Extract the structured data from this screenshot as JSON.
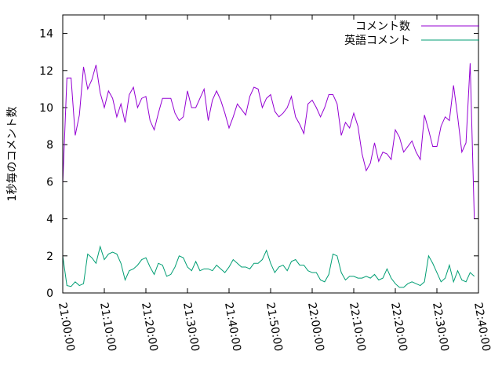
{
  "chart_data": {
    "type": "line",
    "title": "",
    "xlabel": "",
    "ylabel": "1秒毎のコメント数",
    "xlim": [
      "21:00:00",
      "22:40:00"
    ],
    "ylim": [
      0,
      15
    ],
    "x_ticks": [
      "21:00:00",
      "21:10:00",
      "21:20:00",
      "21:30:00",
      "21:40:00",
      "21:50:00",
      "22:00:00",
      "22:10:00",
      "22:20:00",
      "22:30:00",
      "22:40:00"
    ],
    "y_ticks": [
      "0",
      "2",
      "4",
      "6",
      "8",
      "10",
      "12",
      "14"
    ],
    "grid": false,
    "legend_position": "top-right",
    "x_interval": "00:01:00",
    "series": [
      {
        "name": "コメント数",
        "color": "#9400d3",
        "x": [
          "21:00:00",
          "21:01:00",
          "21:02:00",
          "21:03:00",
          "21:04:00",
          "21:05:00",
          "21:06:00",
          "21:07:00",
          "21:08:00",
          "21:09:00",
          "21:10:00",
          "21:11:00",
          "21:12:00",
          "21:13:00",
          "21:14:00",
          "21:15:00",
          "21:16:00",
          "21:17:00",
          "21:18:00",
          "21:19:00",
          "21:20:00",
          "21:21:00",
          "21:22:00",
          "21:23:00",
          "21:24:00",
          "21:25:00",
          "21:26:00",
          "21:27:00",
          "21:28:00",
          "21:29:00",
          "21:30:00",
          "21:31:00",
          "21:32:00",
          "21:33:00",
          "21:34:00",
          "21:35:00",
          "21:36:00",
          "21:37:00",
          "21:38:00",
          "21:39:00",
          "21:40:00",
          "21:41:00",
          "21:42:00",
          "21:43:00",
          "21:44:00",
          "21:45:00",
          "21:46:00",
          "21:47:00",
          "21:48:00",
          "21:49:00",
          "21:50:00",
          "21:51:00",
          "21:52:00",
          "21:53:00",
          "21:54:00",
          "21:55:00",
          "21:56:00",
          "21:57:00",
          "21:58:00",
          "21:59:00",
          "22:00:00",
          "22:01:00",
          "22:02:00",
          "22:03:00",
          "22:04:00",
          "22:05:00",
          "22:06:00",
          "22:07:00",
          "22:08:00",
          "22:09:00",
          "22:10:00",
          "22:11:00",
          "22:12:00",
          "22:13:00",
          "22:14:00",
          "22:15:00",
          "22:16:00",
          "22:17:00",
          "22:18:00",
          "22:19:00",
          "22:20:00",
          "22:21:00",
          "22:22:00",
          "22:23:00",
          "22:24:00",
          "22:25:00",
          "22:26:00",
          "22:27:00",
          "22:28:00",
          "22:29:00",
          "22:30:00",
          "22:31:00",
          "22:32:00",
          "22:33:00",
          "22:34:00",
          "22:35:00",
          "22:36:00",
          "22:37:00",
          "22:38:00",
          "22:39:00"
        ],
        "values": [
          5.9,
          11.6,
          11.6,
          8.5,
          9.6,
          12.2,
          11.0,
          11.5,
          12.3,
          10.8,
          10.0,
          10.9,
          10.5,
          9.5,
          10.2,
          9.2,
          10.7,
          11.1,
          10.0,
          10.5,
          10.6,
          9.3,
          8.8,
          9.7,
          10.5,
          10.5,
          10.5,
          9.7,
          9.3,
          9.5,
          10.9,
          10.0,
          10.0,
          10.5,
          11.0,
          9.3,
          10.4,
          10.9,
          10.4,
          9.7,
          8.9,
          9.5,
          10.2,
          9.9,
          9.6,
          10.6,
          11.1,
          11.0,
          10.0,
          10.5,
          10.7,
          9.8,
          9.5,
          9.7,
          10.0,
          10.6,
          9.5,
          9.1,
          8.6,
          10.2,
          10.4,
          10.0,
          9.5,
          10.0,
          10.7,
          10.7,
          10.2,
          8.5,
          9.2,
          8.9,
          9.7,
          9.0,
          7.5,
          6.6,
          7.0,
          8.1,
          7.1,
          7.6,
          7.5,
          7.2,
          8.8,
          8.4,
          7.6,
          7.9,
          8.2,
          7.6,
          7.2,
          9.6,
          8.8,
          7.9,
          7.9,
          9.0,
          9.5,
          9.3,
          11.2,
          9.5,
          7.6,
          8.1,
          12.4,
          4.0
        ]
      },
      {
        "name": "英語コメント",
        "color": "#009e73",
        "x": [
          "21:00:00",
          "21:01:00",
          "21:02:00",
          "21:03:00",
          "21:04:00",
          "21:05:00",
          "21:06:00",
          "21:07:00",
          "21:08:00",
          "21:09:00",
          "21:10:00",
          "21:11:00",
          "21:12:00",
          "21:13:00",
          "21:14:00",
          "21:15:00",
          "21:16:00",
          "21:17:00",
          "21:18:00",
          "21:19:00",
          "21:20:00",
          "21:21:00",
          "21:22:00",
          "21:23:00",
          "21:24:00",
          "21:25:00",
          "21:26:00",
          "21:27:00",
          "21:28:00",
          "21:29:00",
          "21:30:00",
          "21:31:00",
          "21:32:00",
          "21:33:00",
          "21:34:00",
          "21:35:00",
          "21:36:00",
          "21:37:00",
          "21:38:00",
          "21:39:00",
          "21:40:00",
          "21:41:00",
          "21:42:00",
          "21:43:00",
          "21:44:00",
          "21:45:00",
          "21:46:00",
          "21:47:00",
          "21:48:00",
          "21:49:00",
          "21:50:00",
          "21:51:00",
          "21:52:00",
          "21:53:00",
          "21:54:00",
          "21:55:00",
          "21:56:00",
          "21:57:00",
          "21:58:00",
          "21:59:00",
          "22:00:00",
          "22:01:00",
          "22:02:00",
          "22:03:00",
          "22:04:00",
          "22:05:00",
          "22:06:00",
          "22:07:00",
          "22:08:00",
          "22:09:00",
          "22:10:00",
          "22:11:00",
          "22:12:00",
          "22:13:00",
          "22:14:00",
          "22:15:00",
          "22:16:00",
          "22:17:00",
          "22:18:00",
          "22:19:00",
          "22:20:00",
          "22:21:00",
          "22:22:00",
          "22:23:00",
          "22:24:00",
          "22:25:00",
          "22:26:00",
          "22:27:00",
          "22:28:00",
          "22:29:00",
          "22:30:00",
          "22:31:00",
          "22:32:00",
          "22:33:00",
          "22:34:00",
          "22:35:00",
          "22:36:00",
          "22:37:00",
          "22:38:00",
          "22:39:00"
        ],
        "values": [
          2.0,
          0.4,
          0.35,
          0.6,
          0.4,
          0.5,
          2.1,
          1.9,
          1.6,
          2.5,
          1.8,
          2.1,
          2.2,
          2.1,
          1.6,
          0.7,
          1.2,
          1.3,
          1.5,
          1.8,
          1.9,
          1.4,
          1.0,
          1.6,
          1.5,
          0.9,
          1.0,
          1.4,
          2.0,
          1.9,
          1.4,
          1.2,
          1.7,
          1.2,
          1.3,
          1.3,
          1.2,
          1.5,
          1.3,
          1.1,
          1.4,
          1.8,
          1.6,
          1.4,
          1.4,
          1.3,
          1.6,
          1.6,
          1.8,
          2.3,
          1.6,
          1.1,
          1.4,
          1.5,
          1.2,
          1.7,
          1.8,
          1.5,
          1.5,
          1.2,
          1.1,
          1.1,
          0.7,
          0.6,
          1.0,
          2.1,
          2.0,
          1.1,
          0.7,
          0.9,
          0.9,
          0.8,
          0.8,
          0.9,
          0.8,
          1.0,
          0.7,
          0.8,
          1.3,
          0.8,
          0.5,
          0.3,
          0.3,
          0.5,
          0.6,
          0.5,
          0.4,
          0.6,
          2.0,
          1.6,
          1.1,
          0.6,
          0.8,
          1.5,
          0.6,
          1.2,
          0.7,
          0.6,
          1.1,
          0.9
        ]
      }
    ]
  }
}
